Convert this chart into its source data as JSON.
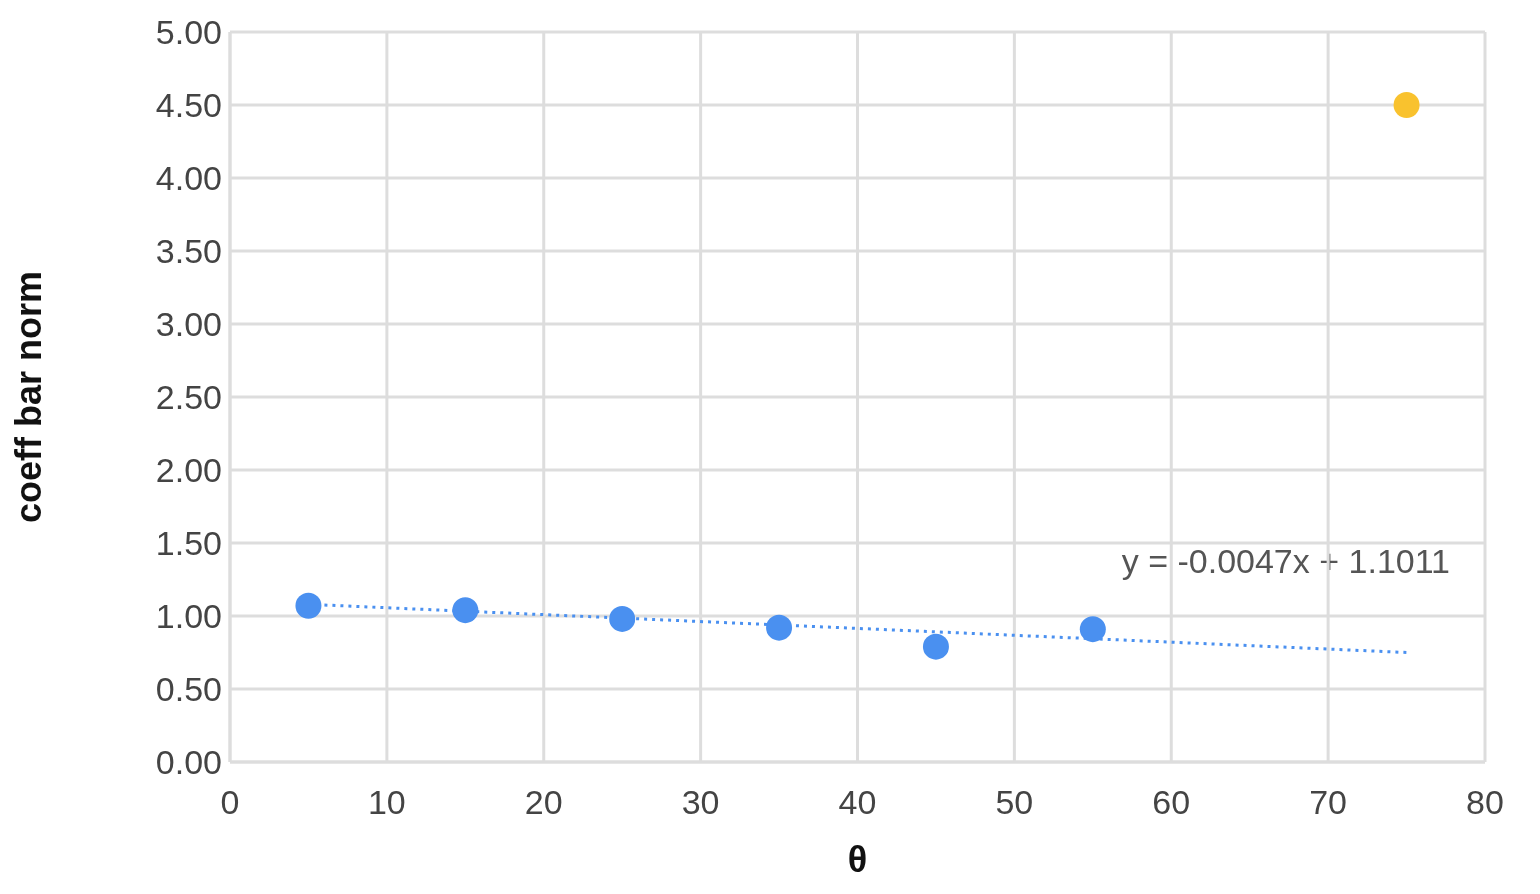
{
  "chart_data": {
    "type": "scatter",
    "xlabel": "θ",
    "ylabel": "coeff bar norm",
    "xlim": [
      0,
      80
    ],
    "xticks": [
      0,
      10,
      20,
      30,
      40,
      50,
      60,
      70,
      80
    ],
    "ylim": [
      0,
      5
    ],
    "yticks": [
      {
        "value": 0,
        "label": "0.00"
      },
      {
        "value": 0.5,
        "label": "0.50"
      },
      {
        "value": 1,
        "label": "1.00"
      },
      {
        "value": 1.5,
        "label": "1.50"
      },
      {
        "value": 2,
        "label": "2.00"
      },
      {
        "value": 2.5,
        "label": "2.50"
      },
      {
        "value": 3,
        "label": "3.00"
      },
      {
        "value": 3.5,
        "label": "3.50"
      },
      {
        "value": 4,
        "label": "4.00"
      },
      {
        "value": 4.5,
        "label": "4.50"
      },
      {
        "value": 5,
        "label": "5.00"
      }
    ],
    "grid": true,
    "marker": "circle",
    "series": [
      {
        "color": "#4a90f0",
        "x": [
          5,
          15,
          25,
          35,
          45,
          55
        ],
        "values": [
          1.07,
          1.04,
          0.98,
          0.92,
          0.79,
          0.91
        ]
      },
      {
        "color": "#f9c22e",
        "x": [
          75
        ],
        "values": [
          4.5
        ]
      },
      {
        "type": "line",
        "color": "#4a90f0",
        "line_style": "dotted",
        "marker": "none",
        "x": [
          5,
          75
        ],
        "values": [
          1.08,
          0.75
        ]
      }
    ],
    "annotations": [
      "y = -0.0047x + 1.1011"
    ]
  }
}
